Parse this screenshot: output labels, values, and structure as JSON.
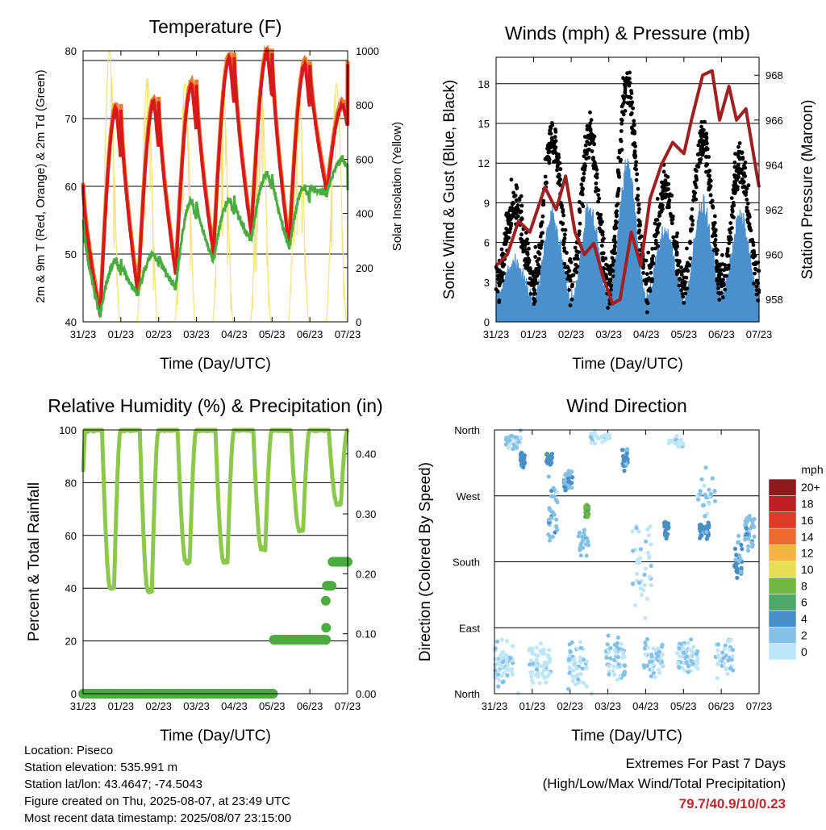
{
  "x_ticks": [
    "31/23",
    "01/23",
    "02/23",
    "03/23",
    "04/23",
    "05/23",
    "06/23",
    "07/23"
  ],
  "chart_data": [
    {
      "type": "line",
      "title": "Temperature (F)",
      "xlabel": "Time (Day/UTC)",
      "ylabel": "2m & 9m T (Red, Orange) & 2m Td (Green)",
      "y2label": "Solar Insolation (Yellow)",
      "ylim": [
        40,
        80
      ],
      "yticks": [
        40,
        50,
        60,
        70,
        80
      ],
      "y2lim": [
        0,
        1000
      ],
      "y2ticks": [
        0,
        200,
        400,
        600,
        800,
        1000
      ],
      "grid": true,
      "series": [
        {
          "name": "2m T",
          "color": "#d7191c",
          "daily_high": [
            71.5,
            72.5,
            75,
            79,
            79.7,
            78,
            72
          ],
          "daily_low": [
            41,
            44,
            47,
            50,
            53,
            51,
            59
          ]
        },
        {
          "name": "9m T",
          "color": "#f07c2a"
        },
        {
          "name": "2m Td",
          "color": "#4aac3f",
          "daily_high": [
            49,
            50,
            58,
            58,
            62,
            60,
            64
          ],
          "daily_low": [
            41,
            44,
            45,
            49,
            52,
            51,
            59
          ]
        },
        {
          "name": "Solar Insolation",
          "color": "#f5e27a",
          "axis": "right",
          "daily_peak": [
            1000,
            900,
            880,
            870,
            900,
            870,
            880
          ]
        }
      ]
    },
    {
      "type": "scatter",
      "title": "Winds (mph) & Pressure (mb)",
      "xlabel": "Time (Day/UTC)",
      "ylabel": "Sonic Wind & Gust (Blue, Black)",
      "y2label": "Station Pressure (Maroon)",
      "ylim": [
        0,
        20
      ],
      "yticks": [
        0,
        3,
        6,
        9,
        12,
        15,
        18
      ],
      "y2lim": [
        957,
        968.8
      ],
      "y2ticks": [
        958,
        960,
        962,
        964,
        966,
        968
      ],
      "grid": true,
      "series": [
        {
          "name": "Sonic Wind",
          "color": "#4a90cc"
        },
        {
          "name": "Gust",
          "color": "#000000"
        },
        {
          "name": "Station Pressure",
          "color": "#a01f20",
          "axis": "right",
          "x_days": [
            0,
            0.3,
            0.6,
            0.9,
            1.1,
            1.3,
            1.6,
            1.85,
            2.1,
            2.35,
            2.6,
            2.85,
            3.1,
            3.3,
            3.6,
            3.85,
            4.1,
            4.4,
            4.7,
            5.0,
            5.2,
            5.5,
            5.75,
            5.95,
            6.2,
            6.4,
            6.65,
            6.9,
            7.0
          ],
          "values": [
            959.5,
            960,
            961.5,
            961,
            962,
            963,
            962,
            963.5,
            961,
            960,
            960.5,
            959,
            957.8,
            958,
            961,
            959.5,
            962.5,
            964,
            965,
            964.5,
            966,
            968,
            968.2,
            966,
            967.5,
            966,
            966.5,
            964,
            963
          ]
        }
      ]
    },
    {
      "type": "line",
      "title": "Relative Humidity (%) & Precipitation (in)",
      "xlabel": "Time (Day/UTC)",
      "ylabel": "Percent & Total Rainfall",
      "ylim": [
        0,
        100
      ],
      "yticks": [
        0,
        20,
        40,
        60,
        80,
        100
      ],
      "y2lim": [
        0,
        0.44
      ],
      "y2ticks": [
        "0.00",
        "0.10",
        "0.20",
        "0.30",
        "0.40"
      ],
      "grid": true,
      "series": [
        {
          "name": "Relative Humidity",
          "color": "#8cc84b",
          "daily_min": [
            40,
            39,
            50,
            50,
            55,
            62,
            72
          ],
          "daily_max": [
            100,
            100,
            100,
            100,
            100,
            100,
            100
          ]
        },
        {
          "name": "Total Rainfall",
          "color": "#4aac3f",
          "axis": "right",
          "x_days": [
            0,
            5.0,
            5.05,
            6.4,
            6.45,
            6.55,
            6.6,
            7.0
          ],
          "values": [
            0.0,
            0.0,
            0.09,
            0.09,
            0.18,
            0.18,
            0.22,
            0.22
          ]
        }
      ]
    },
    {
      "type": "scatter",
      "title": "Wind Direction",
      "xlabel": "Time (Day/UTC)",
      "ylabel": "Direction (Colored By Speed)",
      "yticks": [
        "North",
        "East",
        "South",
        "West",
        "North"
      ],
      "grid": true,
      "legend": {
        "title": "mph",
        "placement": "right",
        "levels": [
          "0",
          "2",
          "4",
          "6",
          "8",
          "10",
          "12",
          "14",
          "16",
          "18",
          "20+"
        ],
        "colors": [
          "#bfe6f7",
          "#85c0e6",
          "#4a8ec8",
          "#4fa86a",
          "#71b542",
          "#e8de55",
          "#f5b342",
          "#ef6a30",
          "#de3a27",
          "#bf1f26",
          "#8e1a1c"
        ]
      }
    }
  ],
  "footer": {
    "location": "Location: Piseco",
    "elevation": "Station elevation: 535.991 m",
    "latlon": "Station lat/lon: 43.4647; -74.5043",
    "created": "Figure created on Thu, 2025-08-07, at 23:49 UTC",
    "recent": "Most recent data timestamp: 2025/08/07 23:15:00"
  },
  "extremes": {
    "title": "Extremes For Past 7 Days",
    "subtitle": "(High/Low/Max Wind/Total Precipitation)",
    "value": "79.7/40.9/10/0.23"
  }
}
